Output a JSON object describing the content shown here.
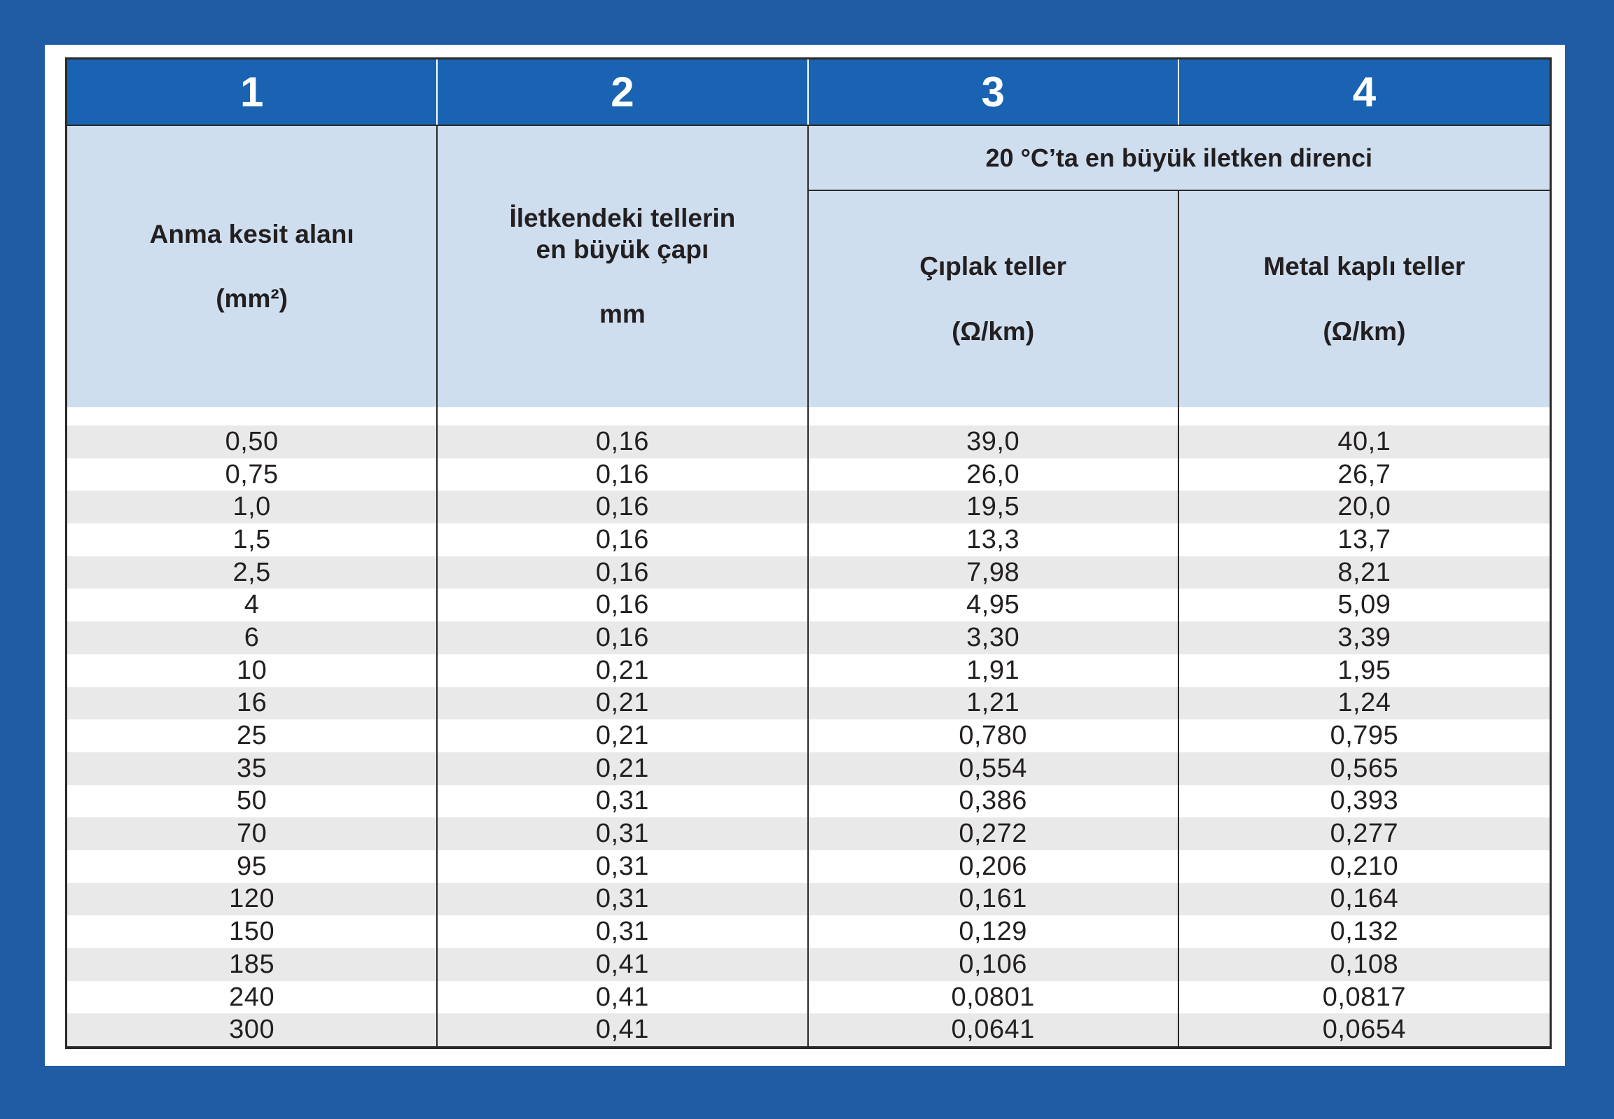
{
  "colors": {
    "outer_background": "#205CA4",
    "header_blue": "#1A63B2",
    "header_light_blue": "#CEDEEF",
    "stripe_gray": "#E9E9E9",
    "border_dark": "#2B2928",
    "text_dark": "#231F20"
  },
  "table": {
    "column_numbers": [
      "1",
      "2",
      "3",
      "4"
    ],
    "columns": [
      {
        "title": "Anma kesit alanı",
        "unit": "(mm²)"
      },
      {
        "title": "İletkendeki tellerin",
        "title_line2": "en büyük çapı",
        "unit": "mm"
      },
      {
        "title": "Çıplak teller",
        "unit": "(Ω/km)"
      },
      {
        "title": "Metal kaplı teller",
        "unit": "(Ω/km)"
      }
    ],
    "group_header": "20 °C’ta en büyük iletken direnci",
    "rows": [
      [
        "0,50",
        "0,16",
        "39,0",
        "40,1"
      ],
      [
        "0,75",
        "0,16",
        "26,0",
        "26,7"
      ],
      [
        "1,0",
        "0,16",
        "19,5",
        "20,0"
      ],
      [
        "1,5",
        "0,16",
        "13,3",
        "13,7"
      ],
      [
        "2,5",
        "0,16",
        "7,98",
        "8,21"
      ],
      [
        "4",
        "0,16",
        "4,95",
        "5,09"
      ],
      [
        "6",
        "0,16",
        "3,30",
        "3,39"
      ],
      [
        "10",
        "0,21",
        "1,91",
        "1,95"
      ],
      [
        "16",
        "0,21",
        "1,21",
        "1,24"
      ],
      [
        "25",
        "0,21",
        "0,780",
        "0,795"
      ],
      [
        "35",
        "0,21",
        "0,554",
        "0,565"
      ],
      [
        "50",
        "0,31",
        "0,386",
        "0,393"
      ],
      [
        "70",
        "0,31",
        "0,272",
        "0,277"
      ],
      [
        "95",
        "0,31",
        "0,206",
        "0,210"
      ],
      [
        "120",
        "0,31",
        "0,161",
        "0,164"
      ],
      [
        "150",
        "0,31",
        "0,129",
        "0,132"
      ],
      [
        "185",
        "0,41",
        "0,106",
        "0,108"
      ],
      [
        "240",
        "0,41",
        "0,0801",
        "0,0817"
      ],
      [
        "300",
        "0,41",
        "0,0641",
        "0,0654"
      ]
    ]
  }
}
